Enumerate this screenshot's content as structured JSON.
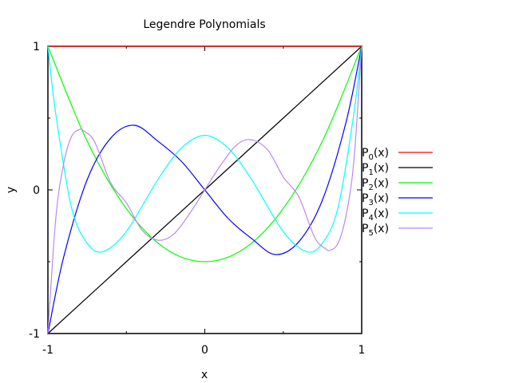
{
  "chart_data": {
    "type": "line",
    "title": "Legendre Polynomials",
    "xlabel": "x",
    "ylabel": "y",
    "xlim": [
      -1,
      1
    ],
    "ylim": [
      -1,
      1
    ],
    "x_ticks": [
      -1,
      0,
      1
    ],
    "y_ticks": [
      -1,
      0,
      1
    ],
    "x_tick_labels": [
      "-1",
      "0",
      "1"
    ],
    "y_tick_labels": [
      "-1",
      "0",
      "1"
    ],
    "grid": false,
    "legend_position": "right",
    "series": [
      {
        "label_base": "P",
        "label_sub": "0",
        "label_tail": "(x)",
        "color": "#ff0000",
        "x": [
          -1,
          -0.5,
          0,
          0.5,
          1
        ],
        "y": [
          1,
          1,
          1,
          1,
          1
        ]
      },
      {
        "label_base": "P",
        "label_sub": "1",
        "label_tail": "(x)",
        "color": "#000000",
        "x": [
          -1,
          -0.5,
          0,
          0.5,
          1
        ],
        "y": [
          -1,
          -0.5,
          0,
          0.5,
          1
        ]
      },
      {
        "label_base": "P",
        "label_sub": "2",
        "label_tail": "(x)",
        "color": "#00ff00",
        "x": [
          -1,
          -0.75,
          -0.5,
          -0.25,
          0,
          0.25,
          0.5,
          0.75,
          1
        ],
        "y": [
          1,
          0.34,
          -0.13,
          -0.41,
          -0.5,
          -0.41,
          -0.13,
          0.34,
          1
        ]
      },
      {
        "label_base": "P",
        "label_sub": "3",
        "label_tail": "(x)",
        "color": "#0000ff",
        "x": [
          -1,
          -0.9,
          -0.75,
          -0.6,
          -0.45,
          -0.3,
          -0.15,
          0,
          0.15,
          0.3,
          0.45,
          0.6,
          0.75,
          0.9,
          1
        ],
        "y": [
          -1,
          -0.47,
          0.07,
          0.36,
          0.45,
          0.34,
          0.2,
          0,
          -0.2,
          -0.34,
          -0.45,
          -0.36,
          -0.07,
          0.47,
          1
        ]
      },
      {
        "label_base": "P",
        "label_sub": "4",
        "label_tail": "(x)",
        "color": "#00ffff",
        "x": [
          -1,
          -0.95,
          -0.85,
          -0.75,
          -0.65,
          -0.5,
          -0.3,
          -0.15,
          0,
          0.15,
          0.3,
          0.5,
          0.65,
          0.75,
          0.85,
          0.95,
          1
        ],
        "y": [
          1,
          0.53,
          -0.12,
          -0.37,
          -0.43,
          -0.29,
          0.07,
          0.29,
          0.38,
          0.29,
          0.07,
          -0.29,
          -0.43,
          -0.37,
          -0.12,
          0.53,
          1
        ]
      },
      {
        "label_base": "P",
        "label_sub": "5",
        "label_tail": "(x)",
        "color": "#bb88ee",
        "x": [
          -1,
          -0.95,
          -0.9,
          -0.85,
          -0.8,
          -0.77,
          -0.7,
          -0.6,
          -0.5,
          -0.4,
          -0.3,
          -0.2,
          -0.1,
          0,
          0.1,
          0.2,
          0.29,
          0.4,
          0.5,
          0.6,
          0.7,
          0.77,
          0.8,
          0.85,
          0.9,
          0.95,
          1
        ],
        "y": [
          -1,
          -0.2,
          0.18,
          0.37,
          0.42,
          0.41,
          0.33,
          0.05,
          -0.09,
          -0.28,
          -0.35,
          -0.31,
          -0.17,
          0,
          0.17,
          0.31,
          0.35,
          0.28,
          0.09,
          -0.05,
          -0.33,
          -0.41,
          -0.42,
          -0.37,
          -0.18,
          0.2,
          1
        ]
      }
    ]
  }
}
